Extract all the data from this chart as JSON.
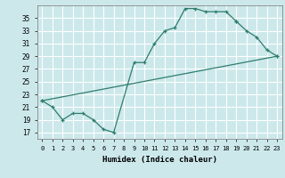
{
  "xlabel": "Humidex (Indice chaleur)",
  "background_color": "#cce8eb",
  "grid_color": "#ffffff",
  "line_color": "#2e7d6e",
  "xlim": [
    -0.5,
    23.5
  ],
  "ylim": [
    16.0,
    37.0
  ],
  "yticks": [
    17,
    19,
    21,
    23,
    25,
    27,
    29,
    31,
    33,
    35
  ],
  "xticks": [
    0,
    1,
    2,
    3,
    4,
    5,
    6,
    7,
    8,
    9,
    10,
    11,
    12,
    13,
    14,
    15,
    16,
    17,
    18,
    19,
    20,
    21,
    22,
    23
  ],
  "curves": [
    {
      "x": [
        0,
        1,
        2,
        3,
        4,
        5,
        6,
        7,
        9,
        10,
        11,
        12,
        13,
        14,
        15,
        16,
        17,
        18,
        19
      ],
      "y": [
        22,
        21,
        19,
        20,
        20,
        19,
        17.5,
        17,
        28,
        28,
        31,
        33,
        33.5,
        36.5,
        36.5,
        36,
        36,
        36,
        34.5
      ]
    },
    {
      "x": [
        0,
        23
      ],
      "y": [
        22,
        29
      ]
    },
    {
      "x": [
        19,
        20,
        21,
        22,
        23
      ],
      "y": [
        34.5,
        33,
        32,
        30,
        29
      ]
    }
  ]
}
